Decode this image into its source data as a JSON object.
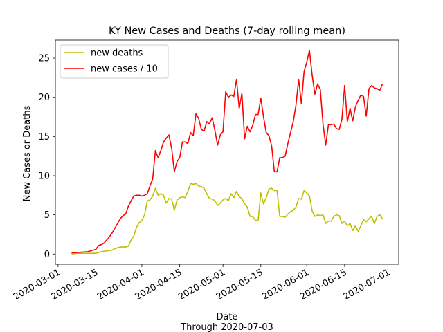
{
  "chart_data": {
    "type": "line",
    "title": "KY New Cases and Deaths (7-day rolling mean)",
    "xlabel": "Date",
    "xlabel_sub": "Through 2020-07-03",
    "ylabel": "New Cases or Deaths",
    "xlim": [
      "2020-02-29",
      "2020-07-05"
    ],
    "ylim": [
      -1.3,
      27.3
    ],
    "x_ticks": [
      "2020-03-01",
      "2020-03-15",
      "2020-04-01",
      "2020-04-15",
      "2020-05-01",
      "2020-05-15",
      "2020-06-01",
      "2020-06-15",
      "2020-07-01"
    ],
    "y_ticks": [
      0,
      5,
      10,
      15,
      20,
      25
    ],
    "grid": false,
    "legend_position": "top-left",
    "series": [
      {
        "name": "new deaths",
        "color": "#bfbf00",
        "points": [
          [
            "2020-03-06",
            0.0
          ],
          [
            "2020-03-08",
            0.1
          ],
          [
            "2020-03-11",
            0.1
          ],
          [
            "2020-03-13",
            0.1
          ],
          [
            "2020-03-15",
            0.1
          ],
          [
            "2020-03-17",
            0.3
          ],
          [
            "2020-03-19",
            0.4
          ],
          [
            "2020-03-21",
            0.5
          ],
          [
            "2020-03-22",
            0.7
          ],
          [
            "2020-03-24",
            0.9
          ],
          [
            "2020-03-26",
            0.9
          ],
          [
            "2020-03-27",
            1.0
          ],
          [
            "2020-03-28",
            1.8
          ],
          [
            "2020-03-29",
            2.3
          ],
          [
            "2020-03-30",
            3.4
          ],
          [
            "2020-03-31",
            4.0
          ],
          [
            "2020-04-01",
            4.3
          ],
          [
            "2020-04-02",
            5.0
          ],
          [
            "2020-04-03",
            6.8
          ],
          [
            "2020-04-04",
            6.9
          ],
          [
            "2020-04-05",
            7.4
          ],
          [
            "2020-04-06",
            8.4
          ],
          [
            "2020-04-07",
            7.5
          ],
          [
            "2020-04-08",
            7.7
          ],
          [
            "2020-04-09",
            7.5
          ],
          [
            "2020-04-10",
            6.5
          ],
          [
            "2020-04-11",
            7.1
          ],
          [
            "2020-04-12",
            7.0
          ],
          [
            "2020-04-13",
            5.6
          ],
          [
            "2020-04-14",
            6.9
          ],
          [
            "2020-04-15",
            7.2
          ],
          [
            "2020-04-16",
            7.3
          ],
          [
            "2020-04-17",
            7.2
          ],
          [
            "2020-04-18",
            8.0
          ],
          [
            "2020-04-19",
            9.0
          ],
          [
            "2020-04-20",
            8.9
          ],
          [
            "2020-04-21",
            9.0
          ],
          [
            "2020-04-22",
            8.7
          ],
          [
            "2020-04-23",
            8.6
          ],
          [
            "2020-04-24",
            8.4
          ],
          [
            "2020-04-25",
            7.7
          ],
          [
            "2020-04-26",
            7.1
          ],
          [
            "2020-04-27",
            7.0
          ],
          [
            "2020-04-28",
            6.8
          ],
          [
            "2020-04-29",
            6.2
          ],
          [
            "2020-04-30",
            6.5
          ],
          [
            "2020-05-01",
            6.9
          ],
          [
            "2020-05-02",
            7.1
          ],
          [
            "2020-05-03",
            6.8
          ],
          [
            "2020-05-04",
            7.7
          ],
          [
            "2020-05-05",
            7.2
          ],
          [
            "2020-05-06",
            8.0
          ],
          [
            "2020-05-07",
            7.3
          ],
          [
            "2020-05-08",
            7.1
          ],
          [
            "2020-05-09",
            6.4
          ],
          [
            "2020-05-10",
            6.0
          ],
          [
            "2020-05-11",
            4.8
          ],
          [
            "2020-05-12",
            4.8
          ],
          [
            "2020-05-13",
            4.3
          ],
          [
            "2020-05-14",
            4.3
          ],
          [
            "2020-05-15",
            7.8
          ],
          [
            "2020-05-16",
            6.4
          ],
          [
            "2020-05-17",
            7.2
          ],
          [
            "2020-05-18",
            8.3
          ],
          [
            "2020-05-19",
            8.4
          ],
          [
            "2020-05-20",
            8.1
          ],
          [
            "2020-05-21",
            8.1
          ],
          [
            "2020-05-22",
            4.8
          ],
          [
            "2020-05-23",
            4.8
          ],
          [
            "2020-05-24",
            4.7
          ],
          [
            "2020-05-25",
            5.1
          ],
          [
            "2020-05-26",
            5.4
          ],
          [
            "2020-05-27",
            5.6
          ],
          [
            "2020-05-28",
            6.0
          ],
          [
            "2020-05-29",
            7.1
          ],
          [
            "2020-05-30",
            7.0
          ],
          [
            "2020-05-31",
            8.1
          ],
          [
            "2020-06-01",
            7.8
          ],
          [
            "2020-06-02",
            7.4
          ],
          [
            "2020-06-03",
            5.5
          ],
          [
            "2020-06-04",
            4.8
          ],
          [
            "2020-06-05",
            5.0
          ],
          [
            "2020-06-06",
            4.9
          ],
          [
            "2020-06-07",
            5.0
          ],
          [
            "2020-06-08",
            3.9
          ],
          [
            "2020-06-09",
            4.2
          ],
          [
            "2020-06-10",
            4.2
          ],
          [
            "2020-06-11",
            4.8
          ],
          [
            "2020-06-12",
            5.0
          ],
          [
            "2020-06-13",
            4.9
          ],
          [
            "2020-06-14",
            3.9
          ],
          [
            "2020-06-15",
            4.2
          ],
          [
            "2020-06-16",
            3.6
          ],
          [
            "2020-06-17",
            3.9
          ],
          [
            "2020-06-18",
            3.0
          ],
          [
            "2020-06-19",
            3.6
          ],
          [
            "2020-06-20",
            2.9
          ],
          [
            "2020-06-21",
            3.6
          ],
          [
            "2020-06-22",
            4.4
          ],
          [
            "2020-06-23",
            4.1
          ],
          [
            "2020-06-24",
            4.5
          ],
          [
            "2020-06-25",
            4.8
          ],
          [
            "2020-06-26",
            3.9
          ],
          [
            "2020-06-27",
            4.8
          ],
          [
            "2020-06-28",
            5.0
          ],
          [
            "2020-06-29",
            4.5
          ]
        ]
      },
      {
        "name": "new cases / 10",
        "color": "#ff0000",
        "points": [
          [
            "2020-03-06",
            0.15
          ],
          [
            "2020-03-08",
            0.2
          ],
          [
            "2020-03-10",
            0.25
          ],
          [
            "2020-03-12",
            0.3
          ],
          [
            "2020-03-14",
            0.5
          ],
          [
            "2020-03-15",
            0.6
          ],
          [
            "2020-03-16",
            1.1
          ],
          [
            "2020-03-17",
            1.2
          ],
          [
            "2020-03-18",
            1.4
          ],
          [
            "2020-03-19",
            1.8
          ],
          [
            "2020-03-20",
            2.2
          ],
          [
            "2020-03-21",
            2.7
          ],
          [
            "2020-03-22",
            3.3
          ],
          [
            "2020-03-23",
            3.9
          ],
          [
            "2020-03-24",
            4.5
          ],
          [
            "2020-03-25",
            4.9
          ],
          [
            "2020-03-26",
            5.1
          ],
          [
            "2020-03-27",
            6.1
          ],
          [
            "2020-03-28",
            6.8
          ],
          [
            "2020-03-29",
            7.4
          ],
          [
            "2020-03-30",
            7.5
          ],
          [
            "2020-03-31",
            7.5
          ],
          [
            "2020-04-01",
            7.4
          ],
          [
            "2020-04-02",
            7.5
          ],
          [
            "2020-04-03",
            7.7
          ],
          [
            "2020-04-04",
            8.7
          ],
          [
            "2020-04-05",
            9.6
          ],
          [
            "2020-04-06",
            13.2
          ],
          [
            "2020-04-07",
            12.3
          ],
          [
            "2020-04-08",
            13.2
          ],
          [
            "2020-04-09",
            14.3
          ],
          [
            "2020-04-10",
            14.8
          ],
          [
            "2020-04-11",
            15.2
          ],
          [
            "2020-04-12",
            13.5
          ],
          [
            "2020-04-13",
            10.5
          ],
          [
            "2020-04-14",
            11.8
          ],
          [
            "2020-04-15",
            12.3
          ],
          [
            "2020-04-16",
            14.3
          ],
          [
            "2020-04-17",
            14.3
          ],
          [
            "2020-04-18",
            14.1
          ],
          [
            "2020-04-19",
            15.5
          ],
          [
            "2020-04-20",
            15.1
          ],
          [
            "2020-04-21",
            17.9
          ],
          [
            "2020-04-22",
            17.3
          ],
          [
            "2020-04-23",
            15.9
          ],
          [
            "2020-04-24",
            15.7
          ],
          [
            "2020-04-25",
            16.9
          ],
          [
            "2020-04-26",
            16.6
          ],
          [
            "2020-04-27",
            17.4
          ],
          [
            "2020-04-28",
            15.8
          ],
          [
            "2020-04-29",
            13.9
          ],
          [
            "2020-04-30",
            15.2
          ],
          [
            "2020-05-01",
            15.6
          ],
          [
            "2020-05-02",
            20.7
          ],
          [
            "2020-05-03",
            20.0
          ],
          [
            "2020-05-04",
            20.3
          ],
          [
            "2020-05-05",
            20.1
          ],
          [
            "2020-05-06",
            22.3
          ],
          [
            "2020-05-07",
            18.6
          ],
          [
            "2020-05-08",
            20.5
          ],
          [
            "2020-05-09",
            14.7
          ],
          [
            "2020-05-10",
            16.3
          ],
          [
            "2020-05-11",
            15.6
          ],
          [
            "2020-05-12",
            16.4
          ],
          [
            "2020-05-13",
            17.8
          ],
          [
            "2020-05-14",
            17.8
          ],
          [
            "2020-05-15",
            19.9
          ],
          [
            "2020-05-16",
            17.5
          ],
          [
            "2020-05-17",
            15.5
          ],
          [
            "2020-05-18",
            15.1
          ],
          [
            "2020-05-19",
            13.8
          ],
          [
            "2020-05-20",
            10.5
          ],
          [
            "2020-05-21",
            10.5
          ],
          [
            "2020-05-22",
            12.3
          ],
          [
            "2020-05-23",
            12.3
          ],
          [
            "2020-05-24",
            12.5
          ],
          [
            "2020-05-25",
            14.1
          ],
          [
            "2020-05-26",
            15.5
          ],
          [
            "2020-05-27",
            16.9
          ],
          [
            "2020-05-28",
            19.0
          ],
          [
            "2020-05-29",
            22.3
          ],
          [
            "2020-05-30",
            19.2
          ],
          [
            "2020-05-31",
            23.3
          ],
          [
            "2020-06-01",
            24.5
          ],
          [
            "2020-06-02",
            26.0
          ],
          [
            "2020-06-03",
            22.8
          ],
          [
            "2020-06-04",
            20.4
          ],
          [
            "2020-06-05",
            21.7
          ],
          [
            "2020-06-06",
            21.0
          ],
          [
            "2020-06-07",
            16.6
          ],
          [
            "2020-06-08",
            13.9
          ],
          [
            "2020-06-09",
            16.5
          ],
          [
            "2020-06-10",
            16.5
          ],
          [
            "2020-06-11",
            16.6
          ],
          [
            "2020-06-12",
            16.0
          ],
          [
            "2020-06-13",
            15.9
          ],
          [
            "2020-06-14",
            17.2
          ],
          [
            "2020-06-15",
            21.5
          ],
          [
            "2020-06-16",
            16.9
          ],
          [
            "2020-06-17",
            18.6
          ],
          [
            "2020-06-18",
            17.0
          ],
          [
            "2020-06-19",
            18.8
          ],
          [
            "2020-06-20",
            19.6
          ],
          [
            "2020-06-21",
            20.3
          ],
          [
            "2020-06-22",
            20.1
          ],
          [
            "2020-06-23",
            17.6
          ],
          [
            "2020-06-24",
            21.1
          ],
          [
            "2020-06-25",
            21.5
          ],
          [
            "2020-06-26",
            21.2
          ],
          [
            "2020-06-27",
            21.1
          ],
          [
            "2020-06-28",
            20.9
          ],
          [
            "2020-06-29",
            21.7
          ]
        ]
      }
    ]
  }
}
